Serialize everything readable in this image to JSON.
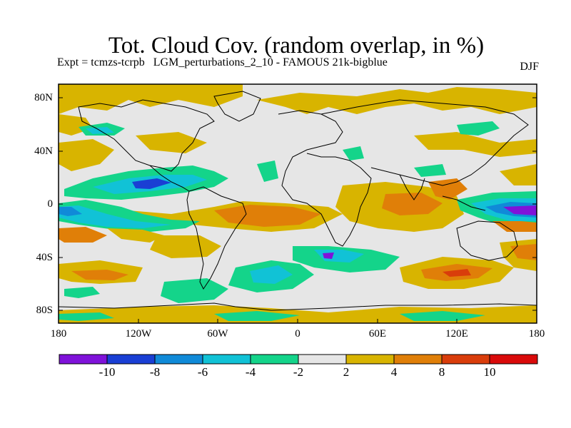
{
  "title": "Tot. Cloud Cov. (random overlap, in %)",
  "subtitle": "Expt = tcmzs-tcrpb   LGM_perturbations_2_10 - FAMOUS 21k-bigblue",
  "season": "DJF",
  "lat_labels": [
    "80N",
    "40N",
    "0",
    "40S",
    "80S"
  ],
  "lon_labels": [
    "180",
    "120W",
    "60W",
    "0",
    "60E",
    "120E",
    "180"
  ],
  "colorbar": {
    "colors": [
      "#7f12d9",
      "#1a3fd4",
      "#108ad8",
      "#11c2d6",
      "#14d48a",
      "#e6e6e6",
      "#d8b400",
      "#e07f08",
      "#d93d0b",
      "#d90a0a"
    ],
    "labels": [
      "-10",
      "-8",
      "-6",
      "-4",
      "-2",
      "2",
      "4",
      "8",
      "10"
    ]
  }
}
